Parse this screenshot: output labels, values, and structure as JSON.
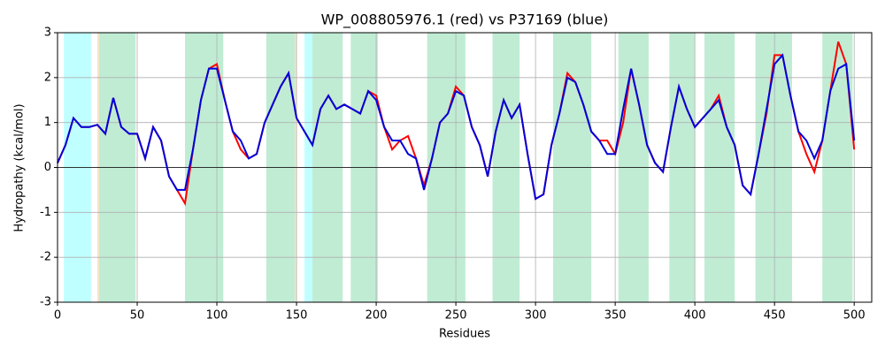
{
  "chart_data": {
    "type": "line",
    "title": "WP_008805976.1 (red) vs P37169 (blue)",
    "xlabel": "Residues",
    "ylabel": "Hydropathy (kcal/mol)",
    "x": [
      0,
      5,
      10,
      15,
      20,
      25,
      30,
      35,
      40,
      45,
      50,
      55,
      60,
      65,
      70,
      75,
      80,
      85,
      90,
      95,
      100,
      105,
      110,
      115,
      120,
      125,
      130,
      135,
      140,
      145,
      150,
      155,
      160,
      165,
      170,
      175,
      180,
      185,
      190,
      195,
      200,
      205,
      210,
      215,
      220,
      225,
      230,
      235,
      240,
      245,
      250,
      255,
      260,
      265,
      270,
      275,
      280,
      285,
      290,
      295,
      300,
      305,
      310,
      315,
      320,
      325,
      330,
      335,
      340,
      345,
      350,
      355,
      360,
      365,
      370,
      375,
      380,
      385,
      390,
      395,
      400,
      405,
      410,
      415,
      420,
      425,
      430,
      435,
      440,
      445,
      450,
      455,
      460,
      465,
      470,
      475,
      480,
      485,
      490,
      495,
      500
    ],
    "series": [
      {
        "name": "WP_008805976.1",
        "color": "#ff0000",
        "values": [
          0.1,
          0.5,
          1.1,
          0.9,
          0.9,
          0.95,
          0.75,
          1.55,
          0.9,
          0.75,
          0.75,
          0.2,
          0.9,
          0.6,
          -0.2,
          -0.5,
          -0.8,
          0.4,
          1.5,
          2.2,
          2.3,
          1.5,
          0.8,
          0.4,
          0.2,
          0.3,
          1.0,
          1.4,
          1.8,
          2.1,
          1.1,
          0.8,
          0.5,
          1.3,
          1.6,
          1.3,
          1.4,
          1.3,
          1.2,
          1.7,
          1.6,
          0.9,
          0.4,
          0.6,
          0.7,
          0.2,
          -0.4,
          0.2,
          1.0,
          1.2,
          1.8,
          1.6,
          0.9,
          0.5,
          -0.2,
          0.8,
          1.5,
          1.1,
          1.4,
          0.3,
          -0.7,
          -0.6,
          0.5,
          1.2,
          2.1,
          1.9,
          1.4,
          0.8,
          0.6,
          0.6,
          0.3,
          1.0,
          2.2,
          1.4,
          0.5,
          0.1,
          -0.1,
          0.9,
          1.8,
          1.3,
          0.9,
          1.1,
          1.3,
          1.6,
          0.9,
          0.5,
          -0.4,
          -0.6,
          0.3,
          1.2,
          2.5,
          2.5,
          1.6,
          0.8,
          0.3,
          -0.1,
          0.6,
          1.7,
          2.8,
          2.3,
          0.4
        ]
      },
      {
        "name": "P37169",
        "color": "#0000dd",
        "values": [
          0.1,
          0.5,
          1.1,
          0.9,
          0.9,
          0.95,
          0.75,
          1.55,
          0.9,
          0.75,
          0.75,
          0.2,
          0.9,
          0.6,
          -0.2,
          -0.5,
          -0.5,
          0.4,
          1.5,
          2.2,
          2.2,
          1.5,
          0.8,
          0.6,
          0.2,
          0.3,
          1.0,
          1.4,
          1.8,
          2.1,
          1.1,
          0.8,
          0.5,
          1.3,
          1.6,
          1.3,
          1.4,
          1.3,
          1.2,
          1.7,
          1.5,
          0.9,
          0.6,
          0.6,
          0.3,
          0.2,
          -0.5,
          0.2,
          1.0,
          1.2,
          1.7,
          1.6,
          0.9,
          0.5,
          -0.2,
          0.8,
          1.5,
          1.1,
          1.4,
          0.3,
          -0.7,
          -0.6,
          0.5,
          1.2,
          2.0,
          1.9,
          1.4,
          0.8,
          0.6,
          0.3,
          0.3,
          1.3,
          2.2,
          1.4,
          0.5,
          0.1,
          -0.1,
          0.9,
          1.8,
          1.3,
          0.9,
          1.1,
          1.3,
          1.5,
          0.9,
          0.5,
          -0.4,
          -0.6,
          0.3,
          1.3,
          2.3,
          2.5,
          1.6,
          0.8,
          0.6,
          0.2,
          0.6,
          1.7,
          2.2,
          2.3,
          0.6
        ]
      }
    ],
    "regions": [
      {
        "start": 4,
        "end": 21,
        "color": "#c0ffff"
      },
      {
        "start": 25,
        "end": 26,
        "color": "#ffe0c0"
      },
      {
        "start": 26,
        "end": 49,
        "color": "#c0ecd4"
      },
      {
        "start": 80,
        "end": 104,
        "color": "#c0ecd4"
      },
      {
        "start": 131,
        "end": 149,
        "color": "#c0ecd4"
      },
      {
        "start": 149,
        "end": 150,
        "color": "#ffe0c0"
      },
      {
        "start": 155,
        "end": 160,
        "color": "#c0ffff"
      },
      {
        "start": 160,
        "end": 179,
        "color": "#c0ecd4"
      },
      {
        "start": 184,
        "end": 201,
        "color": "#c0ecd4"
      },
      {
        "start": 232,
        "end": 256,
        "color": "#c0ecd4"
      },
      {
        "start": 273,
        "end": 290,
        "color": "#c0ecd4"
      },
      {
        "start": 311,
        "end": 335,
        "color": "#c0ecd4"
      },
      {
        "start": 352,
        "end": 371,
        "color": "#c0ecd4"
      },
      {
        "start": 384,
        "end": 400,
        "color": "#c0ecd4"
      },
      {
        "start": 406,
        "end": 425,
        "color": "#c0ecd4"
      },
      {
        "start": 438,
        "end": 461,
        "color": "#c0ecd4"
      },
      {
        "start": 480,
        "end": 499,
        "color": "#c0ecd4"
      }
    ],
    "xlim": [
      0,
      511
    ],
    "ylim": [
      -3,
      3
    ],
    "xticks": [
      0,
      50,
      100,
      150,
      200,
      250,
      300,
      350,
      400,
      450,
      500
    ],
    "yticks": [
      -3,
      -2,
      -1,
      0,
      1,
      2,
      3
    ],
    "grid": true
  }
}
